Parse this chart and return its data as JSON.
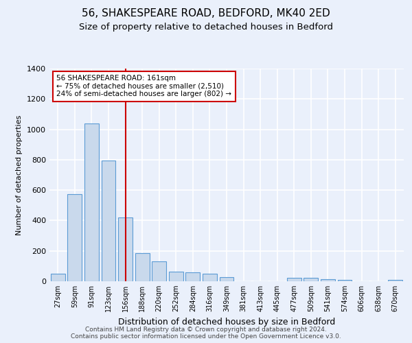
{
  "title1": "56, SHAKESPEARE ROAD, BEDFORD, MK40 2ED",
  "title2": "Size of property relative to detached houses in Bedford",
  "xlabel": "Distribution of detached houses by size in Bedford",
  "ylabel": "Number of detached properties",
  "categories": [
    "27sqm",
    "59sqm",
    "91sqm",
    "123sqm",
    "156sqm",
    "188sqm",
    "220sqm",
    "252sqm",
    "284sqm",
    "316sqm",
    "349sqm",
    "381sqm",
    "413sqm",
    "445sqm",
    "477sqm",
    "509sqm",
    "541sqm",
    "574sqm",
    "606sqm",
    "638sqm",
    "670sqm"
  ],
  "values": [
    50,
    575,
    1040,
    795,
    420,
    185,
    130,
    65,
    60,
    50,
    25,
    0,
    0,
    0,
    22,
    22,
    15,
    10,
    0,
    0,
    10
  ],
  "bar_color": "#c9d9ec",
  "bar_edgecolor": "#5b9bd5",
  "vline_x": 4,
  "vline_color": "#cc0000",
  "annotation_text": "56 SHAKESPEARE ROAD: 161sqm\n← 75% of detached houses are smaller (2,510)\n24% of semi-detached houses are larger (802) →",
  "annotation_box_color": "#ffffff",
  "annotation_box_edgecolor": "#cc0000",
  "ylim": [
    0,
    1400
  ],
  "yticks": [
    0,
    200,
    400,
    600,
    800,
    1000,
    1200,
    1400
  ],
  "footer": "Contains HM Land Registry data © Crown copyright and database right 2024.\nContains public sector information licensed under the Open Government Licence v3.0.",
  "bg_color": "#eaf0fb",
  "plot_bg_color": "#eaf0fb",
  "grid_color": "#ffffff",
  "title1_fontsize": 11,
  "title2_fontsize": 9.5
}
